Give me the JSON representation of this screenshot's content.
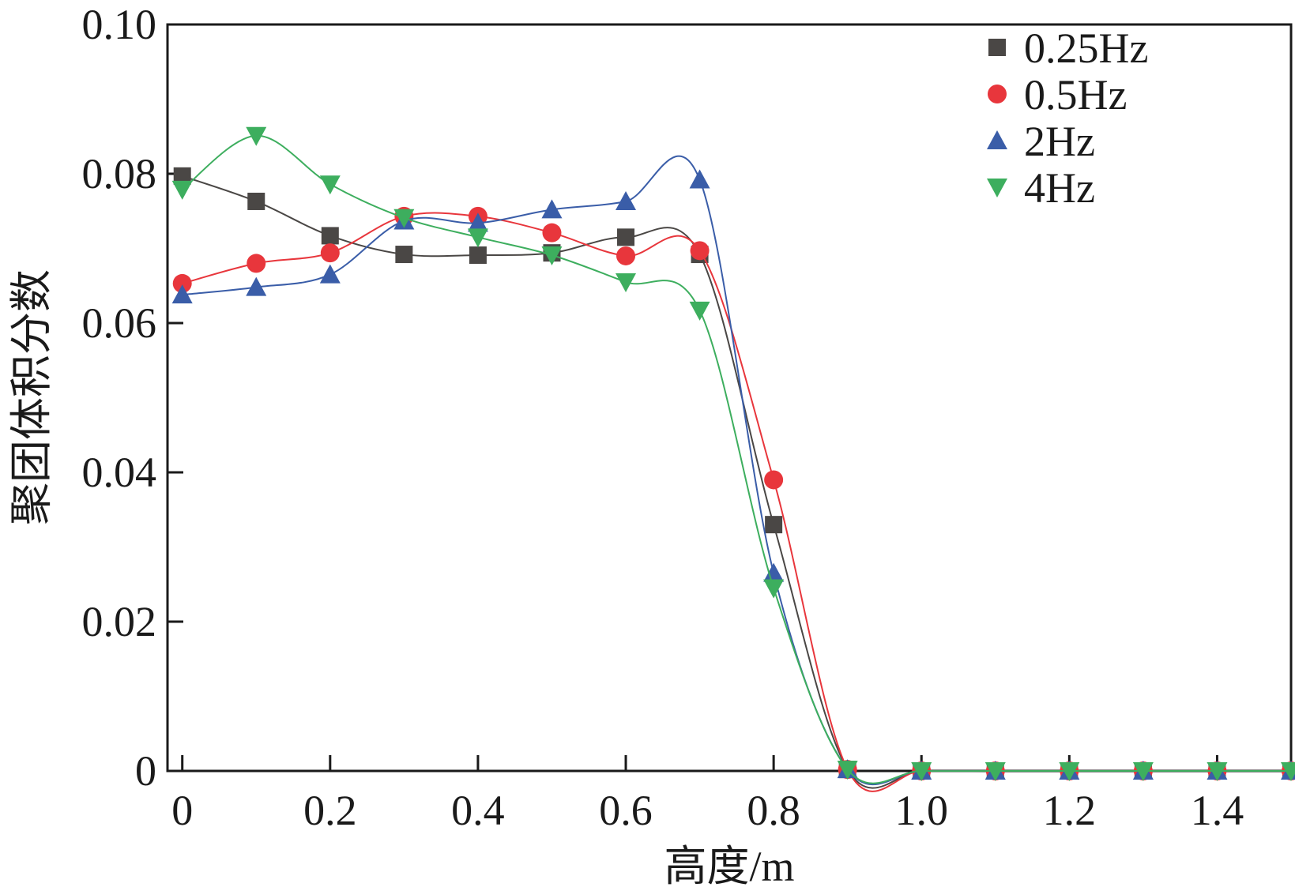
{
  "chart_data": {
    "type": "line",
    "title": "",
    "xlabel": "高度/m",
    "ylabel": "聚团体积分数",
    "xlim": [
      -0.02,
      1.5
    ],
    "ylim": [
      0,
      0.1
    ],
    "x_ticks": [
      0,
      0.2,
      0.4,
      0.6,
      0.8,
      1.0,
      1.2,
      1.4
    ],
    "x_tick_labels": [
      "0",
      "0.2",
      "0.4",
      "0.6",
      "0.8",
      "1.0",
      "1.2",
      "1.4"
    ],
    "y_ticks": [
      0,
      0.02,
      0.04,
      0.06,
      0.08,
      0.1
    ],
    "y_tick_labels": [
      "0",
      "0.02",
      "0.04",
      "0.06",
      "0.08",
      "0.10"
    ],
    "legend_position": "top-right",
    "x": [
      0,
      0.1,
      0.2,
      0.3,
      0.4,
      0.5,
      0.6,
      0.7,
      0.8,
      0.9,
      1.0,
      1.1,
      1.2,
      1.3,
      1.4,
      1.5
    ],
    "series": [
      {
        "name": "0.25Hz",
        "color": "#4a4745",
        "marker": "square",
        "values": [
          0.0797,
          0.0763,
          0.0717,
          0.0692,
          0.0691,
          0.0694,
          0.0715,
          0.0692,
          0.033,
          0.0002,
          0,
          0,
          0,
          0,
          0,
          0
        ]
      },
      {
        "name": "0.5Hz",
        "color": "#e8363c",
        "marker": "circle",
        "values": [
          0.0653,
          0.068,
          0.0694,
          0.0743,
          0.0743,
          0.0721,
          0.069,
          0.0697,
          0.039,
          0.0002,
          0,
          0,
          0,
          0,
          0,
          0
        ]
      },
      {
        "name": "2Hz",
        "color": "#3a5da8",
        "marker": "triangle-up",
        "values": [
          0.0638,
          0.0648,
          0.0665,
          0.0737,
          0.0734,
          0.0752,
          0.0763,
          0.0792,
          0.0265,
          0.0002,
          0,
          0,
          0,
          0,
          0,
          0
        ]
      },
      {
        "name": "4Hz",
        "color": "#3dae5e",
        "marker": "triangle-down",
        "values": [
          0.0779,
          0.0851,
          0.0786,
          0.0741,
          0.0715,
          0.0691,
          0.0655,
          0.0617,
          0.0245,
          0.0002,
          0,
          0,
          0,
          0,
          0,
          0
        ]
      }
    ]
  }
}
